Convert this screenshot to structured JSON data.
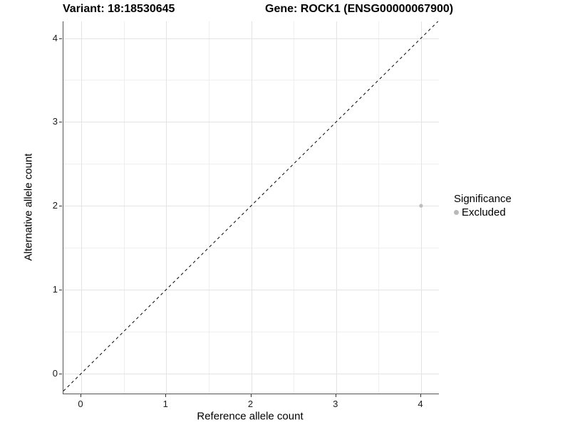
{
  "chart_data": {
    "type": "scatter",
    "titles": {
      "left": "Variant: 18:18530645",
      "right": "Gene: ROCK1 (ENSG00000067900)"
    },
    "xlabel": "Reference allele count",
    "ylabel": "Alternative allele count",
    "xlim": [
      -0.21,
      4.21
    ],
    "ylim": [
      -0.24,
      4.2
    ],
    "xticks": [
      0,
      1,
      2,
      3,
      4
    ],
    "yticks": [
      0,
      1,
      2,
      3,
      4
    ],
    "xticks_minor": [
      0.5,
      1.5,
      2.5,
      3.5
    ],
    "yticks_minor": [
      0.5,
      1.5,
      2.5,
      3.5
    ],
    "grid": "major+minor",
    "reference_line": {
      "equation": "y = x",
      "style": "dashed",
      "color": "#000000"
    },
    "series": [
      {
        "name": "Excluded",
        "color": "#bdbdbd",
        "point_radius": 2.6,
        "points": [
          {
            "x": 4,
            "y": 2
          }
        ]
      }
    ],
    "legend": {
      "title": "Significance",
      "position": "right",
      "items": [
        {
          "label": "Excluded",
          "color": "#b9b9b9"
        }
      ]
    },
    "colors": {
      "background": "#ffffff",
      "grid_major": "#e3e3e3",
      "grid_minor": "#efefef",
      "axis_line": "#555555",
      "tick": "#333333",
      "text": "#000000"
    }
  }
}
